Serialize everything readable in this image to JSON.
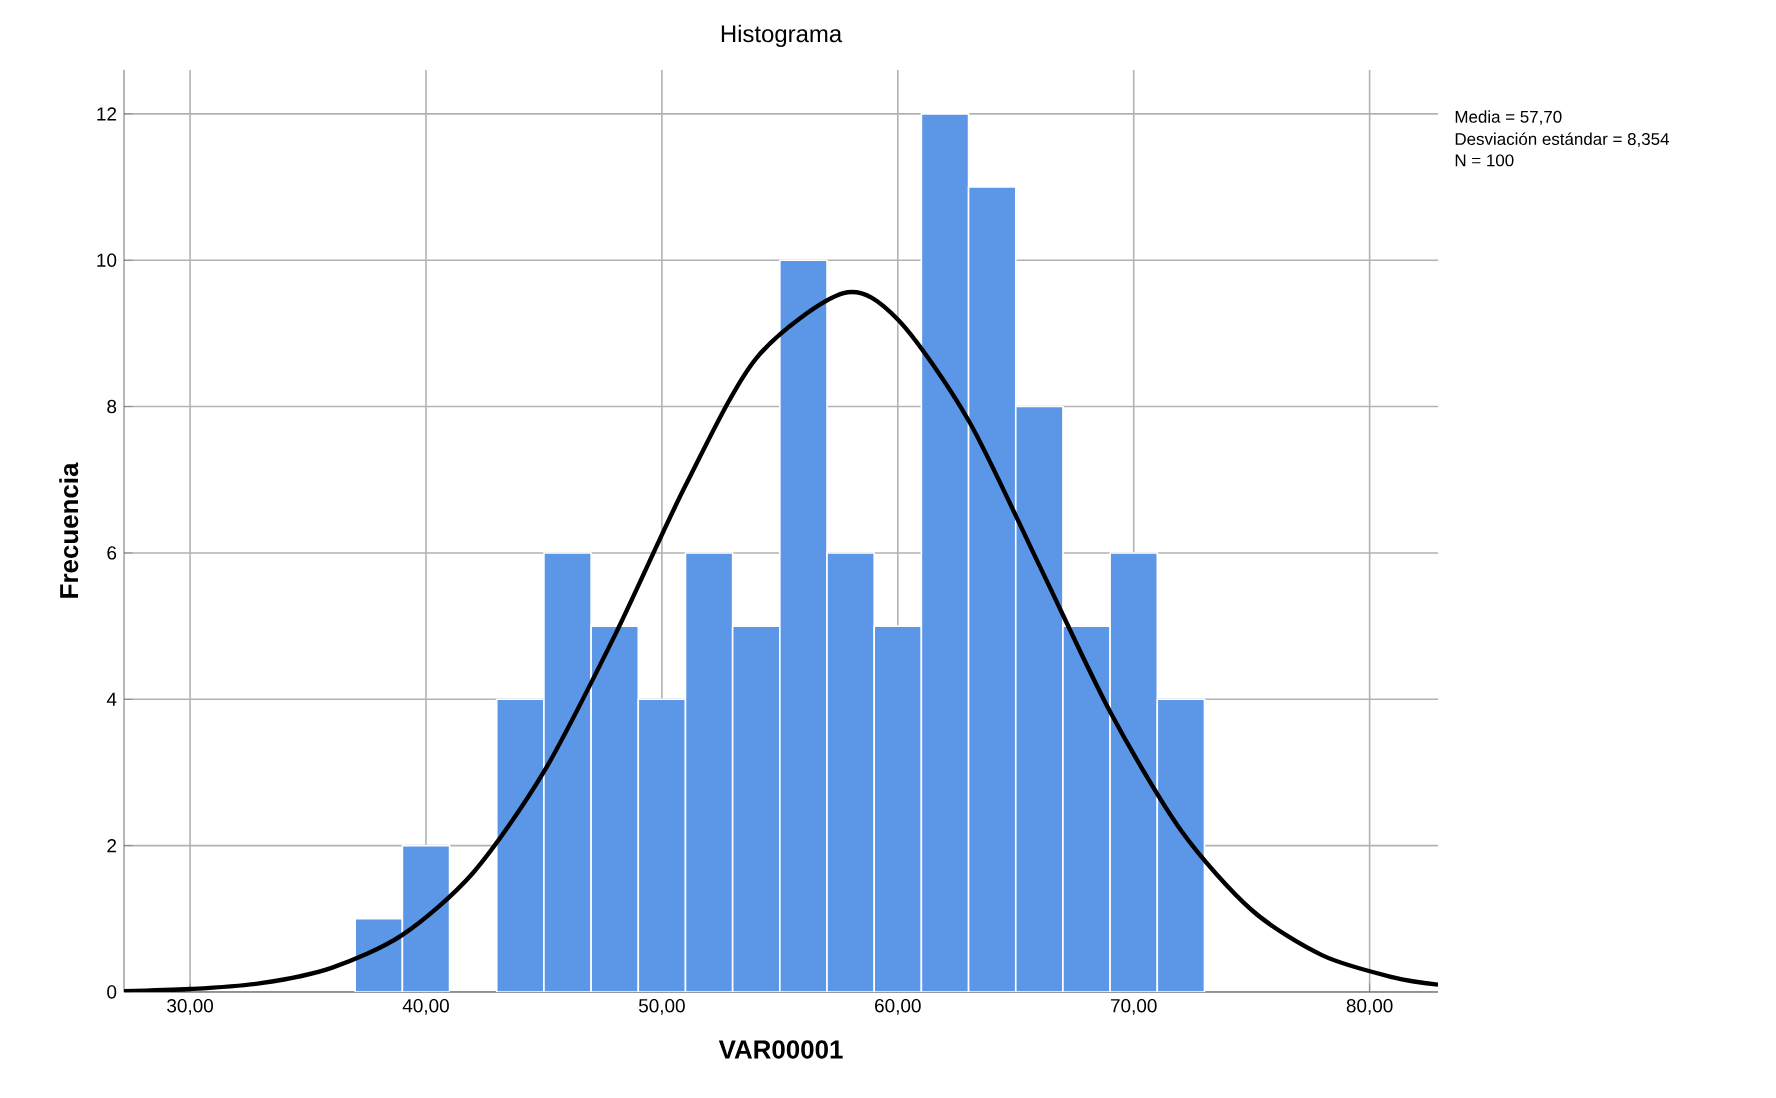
{
  "chart_data": {
    "type": "histogram",
    "title": "Histograma",
    "xlabel": "VAR00001",
    "ylabel": "Frecuencia",
    "bins": [
      37,
      39,
      41,
      43,
      45,
      47,
      49,
      51,
      53,
      55,
      57,
      59,
      61,
      63,
      65,
      67,
      69,
      71,
      73
    ],
    "values": [
      1,
      2,
      0,
      4,
      6,
      5,
      4,
      6,
      5,
      10,
      6,
      5,
      12,
      11,
      8,
      5,
      6,
      4
    ],
    "color": "#5b97e6",
    "series": [
      {
        "type": "line",
        "color": "#000000",
        "x": [
          27.2,
          30,
          33,
          36,
          39,
          42,
          45,
          48,
          51,
          54,
          57.7,
          60,
          63,
          66,
          69,
          72,
          75,
          78,
          81,
          82.9
        ],
        "values": [
          0.01,
          0.04,
          0.12,
          0.33,
          0.78,
          1.63,
          3.01,
          4.87,
          6.92,
          8.66,
          9.55,
          9.19,
          7.81,
          5.83,
          3.83,
          2.21,
          1.12,
          0.5,
          0.2,
          0.1
        ]
      }
    ],
    "xlim": [
      27.2,
      82.9
    ],
    "ylim": [
      0,
      12.6
    ],
    "xticks": [
      {
        "value": 30,
        "label": "30,00"
      },
      {
        "value": 40,
        "label": "40,00"
      },
      {
        "value": 50,
        "label": "50,00"
      },
      {
        "value": 60,
        "label": "60,00"
      },
      {
        "value": 70,
        "label": "70,00"
      },
      {
        "value": 80,
        "label": "80,00"
      }
    ],
    "yticks": [
      0,
      2,
      4,
      6,
      8,
      10,
      12
    ],
    "grid": true,
    "annotations": [
      "Media = 57,70",
      "Desviación estándar = 8,354",
      "N = 100"
    ]
  }
}
